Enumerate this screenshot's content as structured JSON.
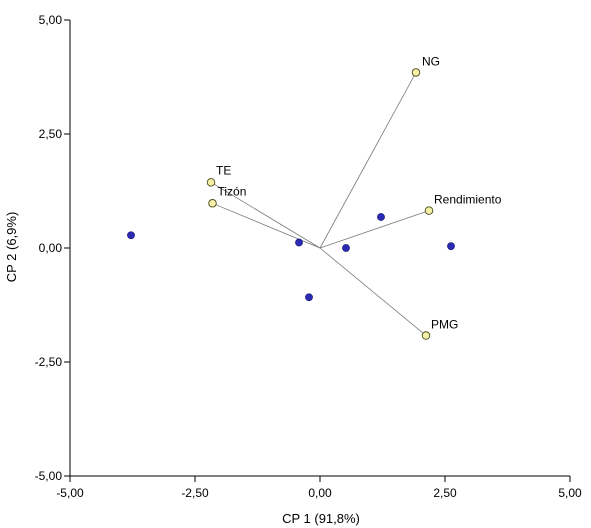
{
  "chart_data": {
    "type": "scatter",
    "title": "",
    "xlabel": "CP 1 (91,8%)",
    "ylabel": "CP 2 (6,9%)",
    "xlim": [
      -5,
      5
    ],
    "ylim": [
      -5,
      5
    ],
    "x_ticks": [
      -5,
      -2.5,
      0,
      2.5,
      5
    ],
    "y_ticks": [
      -5,
      -2.5,
      0,
      2.5,
      5
    ],
    "x_tick_labels": [
      "-5,00",
      "-2,50",
      "0,00",
      "2,50",
      "5,00"
    ],
    "y_tick_labels": [
      "-5,00",
      "-2,50",
      "0,00",
      "2,50",
      "5,00"
    ],
    "grid": false,
    "legend": "none",
    "observations": {
      "color": "#2a2ab4",
      "points": [
        {
          "x": -3.78,
          "y": 0.28
        },
        {
          "x": -0.42,
          "y": 0.12
        },
        {
          "x": -0.22,
          "y": -1.08
        },
        {
          "x": 0.52,
          "y": 0.0
        },
        {
          "x": 1.22,
          "y": 0.68
        },
        {
          "x": 2.62,
          "y": 0.04
        }
      ]
    },
    "variables": {
      "color": "#f5f0a8",
      "vectors": [
        {
          "label": "NG",
          "x": 1.92,
          "y": 3.85
        },
        {
          "label": "TE",
          "x": -2.18,
          "y": 1.44
        },
        {
          "label": "Tizón",
          "x": -2.15,
          "y": 0.98
        },
        {
          "label": "Rendimiento",
          "x": 2.18,
          "y": 0.82
        },
        {
          "label": "PMG",
          "x": 2.12,
          "y": -1.92
        }
      ]
    }
  }
}
